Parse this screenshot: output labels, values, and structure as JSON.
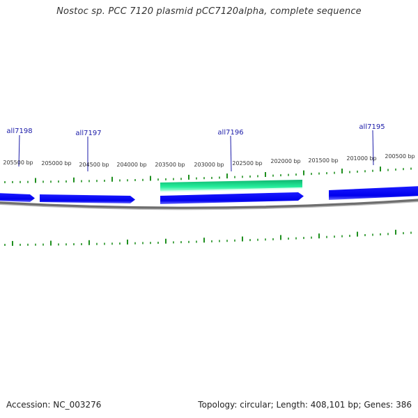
{
  "title": "Nostoc sp. PCC 7120 plasmid pCC7120alpha, complete sequence",
  "footer": {
    "accession": "Accession: NC_003276",
    "summary": "Topology: circular; Length: 408,101 bp; Genes: 386"
  },
  "colors": {
    "gene_forward": "#0000ee",
    "gene_highlight": "#22ee99",
    "backbone": "#8c8c8c",
    "tick": "#1e8f1e",
    "gene_label": "#1a1aa8",
    "coordinate_label": "#333333"
  },
  "gene_labels": [
    "all7198",
    "all7197",
    "all7196",
    "all7195"
  ],
  "coordinate_labels": [
    "205500 bp",
    "205000 bp",
    "204500 bp",
    "204000 bp",
    "203500 bp",
    "203000 bp",
    "202500 bp",
    "202000 bp",
    "201500 bp",
    "201000 bp",
    "200500 bp"
  ]
}
